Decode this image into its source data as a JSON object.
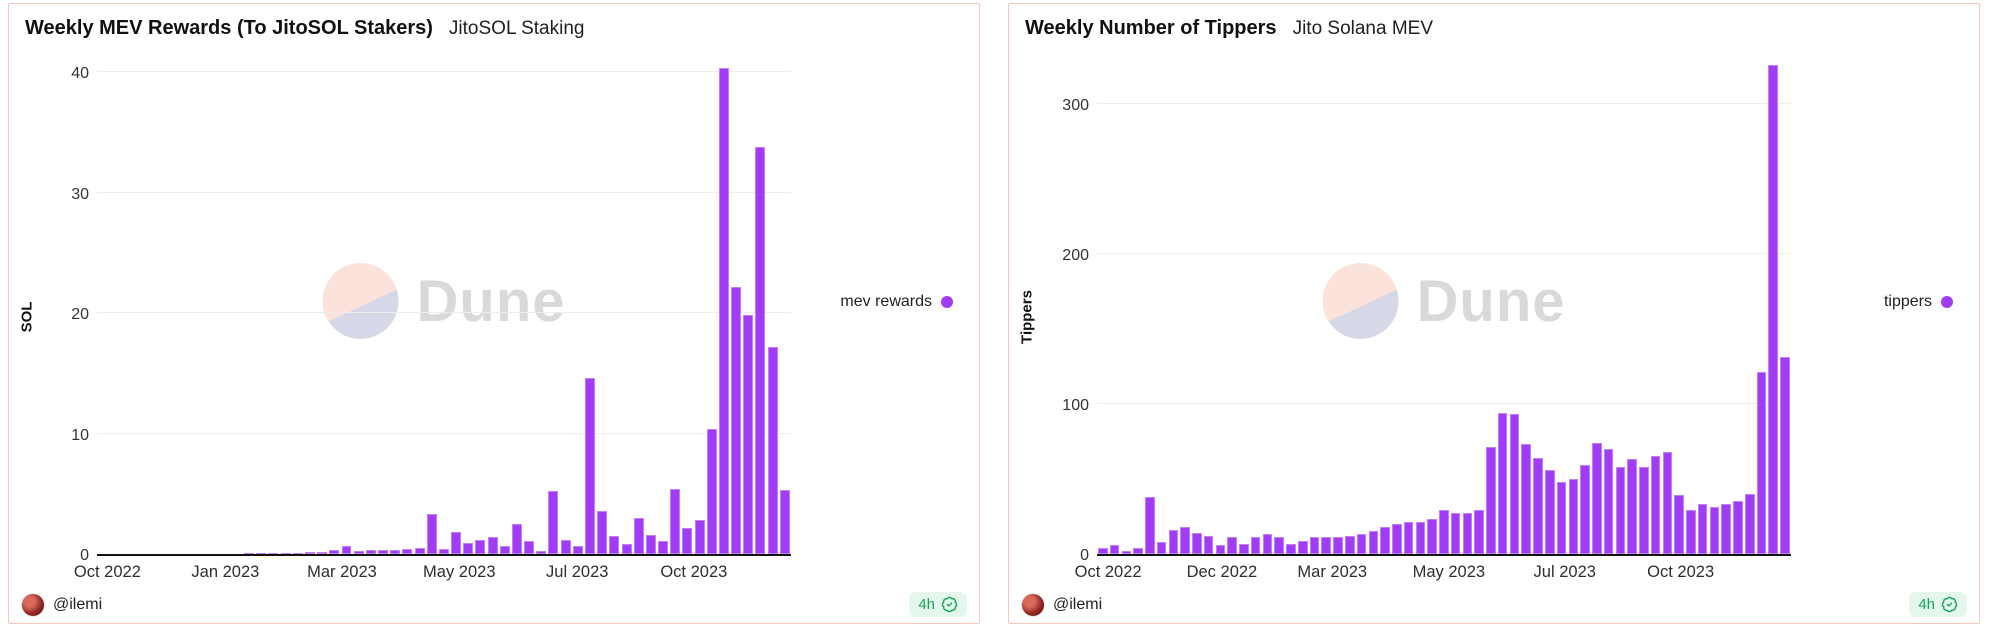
{
  "colors": {
    "accent_purple": "#a13bf5",
    "bar_edge": "rgba(255,255,255,0.35)",
    "panel_border": "#f6c8c1",
    "grid": "#ededed",
    "axis_line": "#111111",
    "badge_green": "#17a45b",
    "badge_bg": "#e4f7ec",
    "watermark_peach": "#fbe2da",
    "watermark_lavender": "#d7d8e7",
    "watermark_text": "#d9d9d9"
  },
  "panels": [
    {
      "subtitle": "JitoSOL Staking",
      "author": "@ilemi",
      "badge": "4h",
      "avatar_icon": "ilemi-avatar",
      "badge_icon": "verified-check-icon"
    },
    {
      "subtitle": "Jito Solana MEV",
      "author": "@ilemi",
      "badge": "4h",
      "avatar_icon": "ilemi-avatar",
      "badge_icon": "verified-check-icon"
    }
  ],
  "watermark": {
    "brand": "Dune"
  },
  "chart_data": [
    {
      "type": "bar",
      "title": "Weekly MEV Rewards (To JitoSOL Stakers)",
      "series_name": "mev rewards",
      "xlabel": "",
      "ylabel": "SOL",
      "x_unit": "week (Oct 2022 - Dec 2023)",
      "yticks": [
        0,
        10,
        20,
        30,
        40
      ],
      "ylim": [
        0,
        42
      ],
      "grid": true,
      "legend_position": "right",
      "bar_color": "#a13bf5",
      "x_ticks": [
        {
          "label": "Oct 2022",
          "pos": 1.5
        },
        {
          "label": "Jan 2023",
          "pos": 18.5
        },
        {
          "label": "Mar 2023",
          "pos": 35.3
        },
        {
          "label": "May 2023",
          "pos": 52.2
        },
        {
          "label": "Jul 2023",
          "pos": 69.2
        },
        {
          "label": "Oct 2023",
          "pos": 86.0
        }
      ],
      "values": [
        0,
        0,
        0,
        0,
        0,
        0,
        0,
        0,
        0,
        0,
        0,
        0,
        0.02,
        0.03,
        0.05,
        0.08,
        0.1,
        0.15,
        0.2,
        0.3,
        0.7,
        0.25,
        0.3,
        0.3,
        0.35,
        0.4,
        0.5,
        3.3,
        0.4,
        1.8,
        0.9,
        1.2,
        1.4,
        0.7,
        2.5,
        1.1,
        0.25,
        5.2,
        1.2,
        0.7,
        14.6,
        3.6,
        1.5,
        0.8,
        3.0,
        1.6,
        1.1,
        5.4,
        2.2,
        2.8,
        10.4,
        40.3,
        22.2,
        19.8,
        33.8,
        17.2,
        5.3
      ]
    },
    {
      "type": "bar",
      "title": "Weekly Number of Tippers",
      "series_name": "tippers",
      "xlabel": "",
      "ylabel": "Tippers",
      "x_unit": "week (Oct 2022 - Dec 2023)",
      "yticks": [
        0,
        100,
        200,
        300
      ],
      "ylim": [
        0,
        337
      ],
      "grid": true,
      "legend_position": "right",
      "bar_color": "#a13bf5",
      "x_ticks": [
        {
          "label": "Oct 2022",
          "pos": 1.6
        },
        {
          "label": "Dec 2022",
          "pos": 18.0
        },
        {
          "label": "Mar 2023",
          "pos": 33.9
        },
        {
          "label": "May 2023",
          "pos": 50.7
        },
        {
          "label": "Jul 2023",
          "pos": 67.4
        },
        {
          "label": "Oct 2023",
          "pos": 84.1
        }
      ],
      "values": [
        4,
        6,
        2,
        4,
        38,
        8,
        16,
        18,
        14,
        12,
        6,
        11,
        7,
        11,
        13,
        11,
        7,
        9,
        11,
        11,
        11,
        12,
        13,
        15,
        18,
        20,
        21,
        21,
        23,
        29,
        27,
        27,
        29,
        71,
        94,
        93,
        73,
        64,
        56,
        48,
        50,
        59,
        74,
        70,
        58,
        63,
        58,
        65,
        68,
        39,
        29,
        33,
        31,
        33,
        35,
        40,
        121,
        326,
        131
      ]
    }
  ]
}
